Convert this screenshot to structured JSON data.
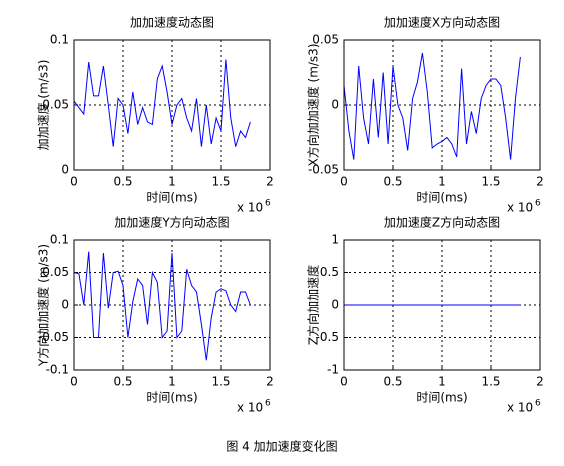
{
  "caption": "图 4  加加速度变化图",
  "chart_data": [
    {
      "type": "line",
      "title": "加加速度动态图",
      "x_label": "时间(ms)",
      "y_label": "加加速度 (m/s3)",
      "x_scale_label": "x 10",
      "x_scale_exponent": "6",
      "xlim": [
        0,
        2
      ],
      "xticks": [
        0,
        0.5,
        1,
        1.5,
        2
      ],
      "ylim": [
        0,
        0.1
      ],
      "yticks": [
        0,
        0.05,
        0.1
      ],
      "grid": true,
      "x": [
        0,
        0.05,
        0.1,
        0.15,
        0.2,
        0.25,
        0.3,
        0.35,
        0.4,
        0.45,
        0.5,
        0.55,
        0.6,
        0.65,
        0.7,
        0.75,
        0.8,
        0.85,
        0.9,
        0.95,
        1,
        1.05,
        1.1,
        1.15,
        1.2,
        1.25,
        1.3,
        1.35,
        1.4,
        1.45,
        1.5,
        1.55,
        1.6,
        1.65,
        1.7,
        1.75,
        1.8
      ],
      "series": [
        {
          "color": "#0000ff",
          "values": [
            0.053,
            0.048,
            0.043,
            0.083,
            0.057,
            0.057,
            0.08,
            0.05,
            0.018,
            0.055,
            0.05,
            0.028,
            0.06,
            0.035,
            0.048,
            0.037,
            0.035,
            0.07,
            0.08,
            0.06,
            0.035,
            0.05,
            0.055,
            0.04,
            0.03,
            0.055,
            0.018,
            0.05,
            0.02,
            0.04,
            0.03,
            0.085,
            0.04,
            0.018,
            0.03,
            0.025,
            0.037
          ]
        }
      ]
    },
    {
      "type": "line",
      "title": "加加速度X方向动态图",
      "x_label": "时间(ms)",
      "y_label": "X方向加加速度 (m/s3)",
      "x_scale_label": "x 10",
      "x_scale_exponent": "6",
      "xlim": [
        0,
        2
      ],
      "xticks": [
        0,
        0.5,
        1,
        1.5,
        2
      ],
      "ylim": [
        -0.05,
        0.05
      ],
      "yticks": [
        -0.05,
        0,
        0.05
      ],
      "grid": true,
      "x": [
        0,
        0.05,
        0.1,
        0.15,
        0.2,
        0.25,
        0.3,
        0.35,
        0.4,
        0.45,
        0.5,
        0.55,
        0.6,
        0.65,
        0.7,
        0.75,
        0.8,
        0.85,
        0.9,
        0.95,
        1,
        1.05,
        1.1,
        1.15,
        1.2,
        1.25,
        1.3,
        1.35,
        1.4,
        1.45,
        1.5,
        1.55,
        1.6,
        1.65,
        1.7,
        1.75,
        1.8
      ],
      "series": [
        {
          "color": "#0000ff",
          "values": [
            0.015,
            -0.02,
            -0.042,
            0.03,
            -0.01,
            -0.03,
            0.02,
            -0.025,
            0.025,
            -0.03,
            0.03,
            0,
            -0.01,
            -0.035,
            0.005,
            0.018,
            0.04,
            0.01,
            -0.033,
            -0.03,
            -0.028,
            -0.025,
            -0.03,
            -0.04,
            0.028,
            -0.03,
            -0.005,
            -0.022,
            0.005,
            0.015,
            0.02,
            0.02,
            0.015,
            -0.01,
            -0.042,
            0.005,
            0.037
          ]
        }
      ]
    },
    {
      "type": "line",
      "title": "加加速度Y方向动态图",
      "x_label": "时间(ms)",
      "y_label": "Y方向加加速度 (m/s3)",
      "x_scale_label": "x 10",
      "x_scale_exponent": "6",
      "xlim": [
        0,
        2
      ],
      "xticks": [
        0,
        0.5,
        1,
        1.5,
        2
      ],
      "ylim": [
        -0.1,
        0.1
      ],
      "yticks": [
        -0.1,
        -0.05,
        0,
        0.05,
        0.1
      ],
      "grid": true,
      "x": [
        0,
        0.05,
        0.1,
        0.15,
        0.2,
        0.25,
        0.3,
        0.35,
        0.4,
        0.45,
        0.5,
        0.55,
        0.6,
        0.65,
        0.7,
        0.75,
        0.8,
        0.85,
        0.9,
        0.95,
        1,
        1.05,
        1.1,
        1.15,
        1.2,
        1.25,
        1.3,
        1.35,
        1.4,
        1.45,
        1.5,
        1.55,
        1.6,
        1.65,
        1.7,
        1.75,
        1.8
      ],
      "series": [
        {
          "color": "#0000ff",
          "values": [
            0.05,
            0.048,
            0,
            0.082,
            -0.05,
            -0.05,
            0.08,
            -0.005,
            0.05,
            0.052,
            0.03,
            -0.05,
            0.005,
            0.04,
            0.03,
            -0.03,
            0.05,
            0.035,
            -0.05,
            -0.04,
            0.08,
            -0.05,
            -0.04,
            0.055,
            0.03,
            0.02,
            -0.03,
            -0.085,
            -0.02,
            0.02,
            0.025,
            0.022,
            0,
            -0.01,
            0.02,
            0.02,
            0
          ]
        }
      ]
    },
    {
      "type": "line",
      "title": "加加速度Z方向动态图",
      "x_label": "时间(ms)",
      "y_label": "Z方向加加速度",
      "x_scale_label": "x 10",
      "x_scale_exponent": "6",
      "xlim": [
        0,
        2
      ],
      "xticks": [
        0,
        0.5,
        1,
        1.5,
        2
      ],
      "ylim": [
        -1,
        1
      ],
      "yticks": [
        -1,
        -0.5,
        0,
        0.5,
        1
      ],
      "grid": true,
      "x": [
        0,
        0.05,
        0.1,
        0.15,
        0.2,
        0.25,
        0.3,
        0.35,
        0.4,
        0.45,
        0.5,
        0.55,
        0.6,
        0.65,
        0.7,
        0.75,
        0.8,
        0.85,
        0.9,
        0.95,
        1,
        1.05,
        1.1,
        1.15,
        1.2,
        1.25,
        1.3,
        1.35,
        1.4,
        1.45,
        1.5,
        1.55,
        1.6,
        1.65,
        1.7,
        1.75,
        1.8
      ],
      "series": [
        {
          "color": "#0000ff",
          "values": [
            0,
            0,
            0,
            0,
            0,
            0,
            0,
            0,
            0,
            0,
            0,
            0,
            0,
            0,
            0,
            0,
            0,
            0,
            0,
            0,
            0,
            0,
            0,
            0,
            0,
            0,
            0,
            0,
            0,
            0,
            0,
            0,
            0,
            0,
            0,
            0,
            0
          ]
        }
      ]
    }
  ]
}
